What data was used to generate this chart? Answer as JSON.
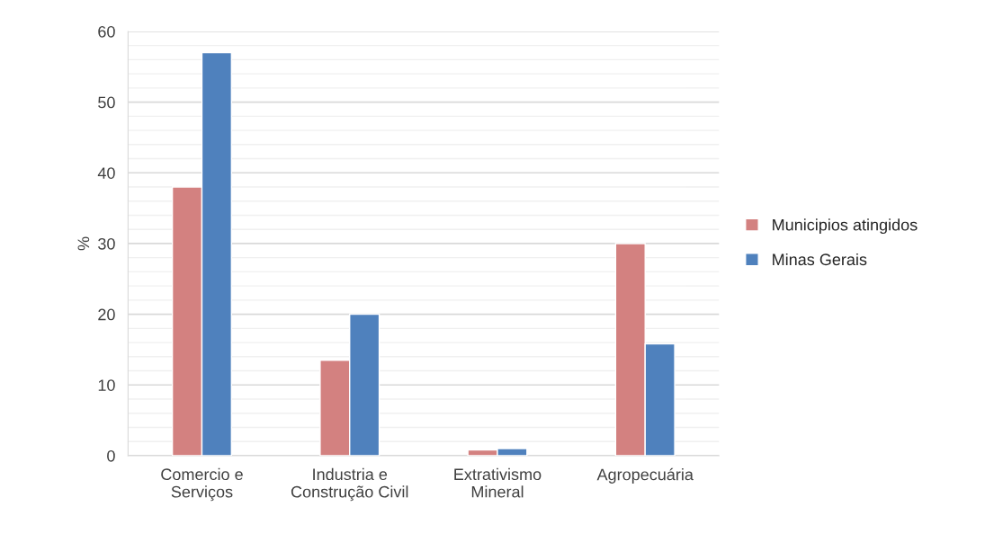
{
  "chart_data": {
    "type": "bar",
    "ylabel": "%",
    "categories": [
      "Comercio e\nServiços",
      "Industria e\nConstrução Civil",
      "Extrativismo\nMineral",
      "Agropecuária"
    ],
    "series": [
      {
        "name": "Municipios atingidos",
        "color": "#d38180",
        "values": [
          38,
          13.5,
          0.8,
          30
        ]
      },
      {
        "name": "Minas Gerais",
        "color": "#4f81bd",
        "values": [
          57,
          20,
          1.0,
          15.8
        ]
      }
    ],
    "ylim": [
      0,
      60
    ],
    "yticks": [
      0,
      {
        "value": 2,
        "label": null
      },
      {
        "value": 4,
        "label": null
      },
      {
        "value": 6,
        "label": null
      },
      {
        "value": 8,
        "label": null
      },
      10,
      {
        "value": 12,
        "label": null
      },
      {
        "value": 14,
        "label": null
      },
      {
        "value": 16,
        "label": null
      },
      {
        "value": 18,
        "label": null
      },
      20,
      {
        "value": 22,
        "label": null
      },
      {
        "value": 24,
        "label": null
      },
      {
        "value": 26,
        "label": null
      },
      {
        "value": 28,
        "label": null
      },
      30,
      {
        "value": 32,
        "label": null
      },
      {
        "value": 34,
        "label": null
      },
      {
        "value": 36,
        "label": null
      },
      {
        "value": 38,
        "label": null
      },
      40,
      {
        "value": 42,
        "label": null
      },
      {
        "value": 44,
        "label": null
      },
      {
        "value": 46,
        "label": null
      },
      {
        "value": 48,
        "label": null
      },
      50,
      {
        "value": 52,
        "label": null
      },
      {
        "value": 54,
        "label": null
      },
      {
        "value": 56,
        "label": null
      },
      {
        "value": 58,
        "label": null
      },
      60
    ],
    "grid": "y",
    "legend": "right"
  }
}
